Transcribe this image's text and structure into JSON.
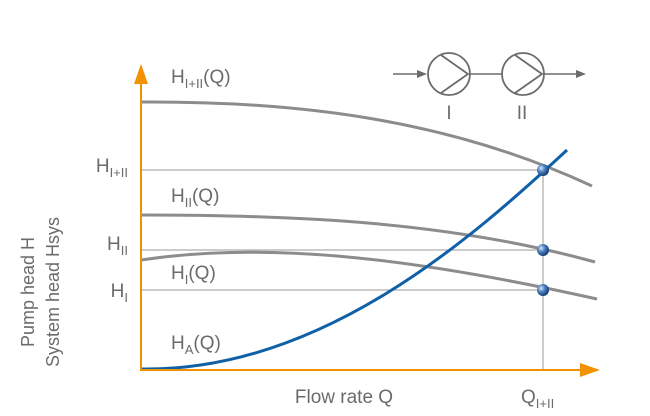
{
  "diagram": {
    "y_axis_label_line1": "Pump head H",
    "y_axis_label_line2": "System head Hsys",
    "x_axis_label": "Flow rate Q",
    "x_mark": {
      "main": "Q",
      "sub": "I+II"
    },
    "curve_labels": [
      {
        "id": "h-combined",
        "main": "H",
        "sub": "I+II",
        "suffix": "(Q)"
      },
      {
        "id": "h-pump2",
        "main": "H",
        "sub": "II",
        "suffix": "(Q)"
      },
      {
        "id": "h-pump1",
        "main": "H",
        "sub": "I",
        "suffix": "(Q)"
      },
      {
        "id": "h-system",
        "main": "H",
        "sub": "A",
        "suffix": "(Q)"
      }
    ],
    "head_marks": [
      {
        "id": "combined",
        "main": "H",
        "sub": "I+II"
      },
      {
        "id": "pump2",
        "main": "H",
        "sub": "II"
      },
      {
        "id": "pump1",
        "main": "H",
        "sub": "I"
      }
    ],
    "pump_labels": [
      "I",
      "II"
    ]
  },
  "colors": {
    "axis": "#f39200",
    "pump_curve": "#8c8c8c",
    "system_curve": "#1060a8",
    "guide_line": "#9a9a9a",
    "text": "#6b6b6b",
    "operating_point": "#2a5fa0"
  }
}
